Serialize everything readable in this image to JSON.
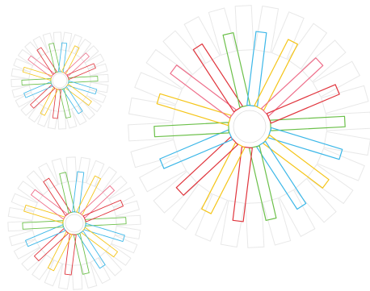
{
  "palette": {
    "red": "#e0343c",
    "pink": "#ee6e8a",
    "green": "#6cc04a",
    "blue": "#3bb7e8",
    "yellow": "#f5c518",
    "guide": "#e8e8e8"
  },
  "color_cycle": [
    "green",
    "blue",
    "yellow",
    "blue",
    "green",
    "red",
    "yellow",
    "red",
    "blue",
    "green",
    "yellow",
    "pink",
    "red",
    "green",
    "blue",
    "yellow",
    "pink",
    "red"
  ],
  "diagrams": [
    {
      "id": "wheel-large",
      "petal_count": 18,
      "guide_count": 28
    },
    {
      "id": "wheel-small-top",
      "petal_count": 18,
      "guide_count": 28
    },
    {
      "id": "wheel-small-bottom",
      "petal_count": 18,
      "guide_count": 28
    }
  ]
}
